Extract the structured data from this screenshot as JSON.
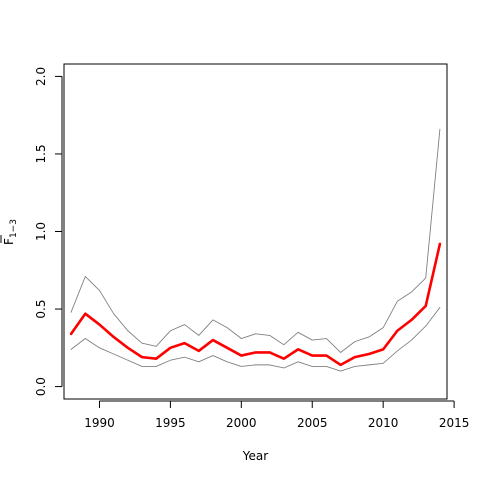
{
  "chart_data": {
    "type": "line",
    "xlabel": "Year",
    "ylabel": "F̄1−3",
    "ylabel_main": "F",
    "ylabel_sub": "1−3",
    "xlim": [
      1987.5,
      2014.5
    ],
    "ylim": [
      -0.08,
      2.08
    ],
    "xticks": [
      1990,
      1995,
      2000,
      2005,
      2010,
      2015
    ],
    "xtick_labels": [
      "1990",
      "1995",
      "2000",
      "2005",
      "2010",
      "2015"
    ],
    "yticks": [
      0.0,
      0.5,
      1.0,
      1.5,
      2.0
    ],
    "ytick_labels": [
      "0.0",
      "0.5",
      "1.0",
      "1.5",
      "2.0"
    ],
    "x": [
      1988,
      1989,
      1990,
      1991,
      1992,
      1993,
      1994,
      1995,
      1996,
      1997,
      1998,
      1999,
      2000,
      2001,
      2002,
      2003,
      2004,
      2005,
      2006,
      2007,
      2008,
      2009,
      2010,
      2011,
      2012,
      2013,
      2014
    ],
    "series": [
      {
        "role": "upper",
        "color": "#808080",
        "values": [
          0.48,
          0.71,
          0.62,
          0.47,
          0.36,
          0.28,
          0.26,
          0.36,
          0.4,
          0.33,
          0.43,
          0.38,
          0.31,
          0.34,
          0.33,
          0.27,
          0.35,
          0.3,
          0.31,
          0.22,
          0.29,
          0.32,
          0.38,
          0.55,
          0.61,
          0.7,
          1.66
        ]
      },
      {
        "role": "estimate",
        "color": "#ff0000",
        "values": [
          0.34,
          0.47,
          0.4,
          0.32,
          0.25,
          0.19,
          0.18,
          0.25,
          0.28,
          0.23,
          0.3,
          0.25,
          0.2,
          0.22,
          0.22,
          0.18,
          0.24,
          0.2,
          0.2,
          0.14,
          0.19,
          0.21,
          0.24,
          0.36,
          0.43,
          0.52,
          0.92
        ]
      },
      {
        "role": "lower",
        "color": "#808080",
        "values": [
          0.24,
          0.31,
          0.25,
          0.21,
          0.17,
          0.13,
          0.13,
          0.17,
          0.19,
          0.16,
          0.2,
          0.16,
          0.13,
          0.14,
          0.14,
          0.12,
          0.16,
          0.13,
          0.13,
          0.1,
          0.13,
          0.14,
          0.15,
          0.23,
          0.3,
          0.39,
          0.51
        ]
      }
    ],
    "grid": false,
    "legend": "none"
  }
}
